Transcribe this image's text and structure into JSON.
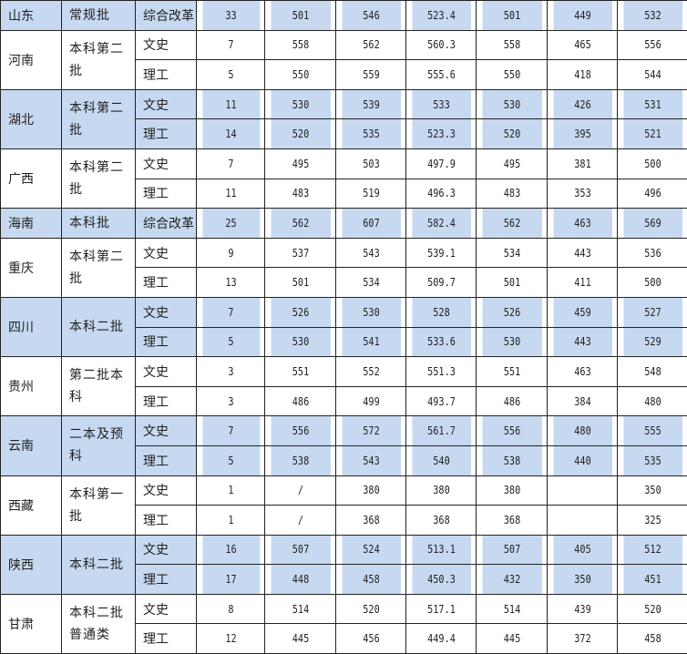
{
  "groups": [
    {
      "province": "山东",
      "batch": "常规批",
      "rows": [
        [
          "综合改革",
          "33",
          "501",
          "546",
          "523.4",
          "501",
          "449",
          "532"
        ]
      ]
    },
    {
      "province": "河南",
      "batch": "本科第二批",
      "rows": [
        [
          "文史",
          "7",
          "558",
          "562",
          "560.3",
          "558",
          "465",
          "556"
        ],
        [
          "理工",
          "5",
          "550",
          "559",
          "555.6",
          "550",
          "418",
          "544"
        ]
      ]
    },
    {
      "province": "湖北",
      "batch": "本科第二批",
      "rows": [
        [
          "文史",
          "11",
          "530",
          "539",
          "533",
          "530",
          "426",
          "531"
        ],
        [
          "理工",
          "14",
          "520",
          "535",
          "523.3",
          "520",
          "395",
          "521"
        ]
      ]
    },
    {
      "province": "广西",
      "batch": "本科第二批",
      "rows": [
        [
          "文史",
          "7",
          "495",
          "503",
          "497.9",
          "495",
          "381",
          "500"
        ],
        [
          "理工",
          "11",
          "483",
          "519",
          "496.3",
          "483",
          "353",
          "496"
        ]
      ]
    },
    {
      "province": "海南",
      "batch": "本科批",
      "rows": [
        [
          "综合改革",
          "25",
          "562",
          "607",
          "582.4",
          "562",
          "463",
          "569"
        ]
      ]
    },
    {
      "province": "重庆",
      "batch": "本科第二批",
      "rows": [
        [
          "文史",
          "9",
          "537",
          "543",
          "539.1",
          "534",
          "443",
          "536"
        ],
        [
          "理工",
          "13",
          "501",
          "534",
          "509.7",
          "501",
          "411",
          "500"
        ]
      ]
    },
    {
      "province": "四川",
      "batch": "本科二批",
      "rows": [
        [
          "文史",
          "7",
          "526",
          "530",
          "528",
          "526",
          "459",
          "527"
        ],
        [
          "理工",
          "5",
          "530",
          "541",
          "533.6",
          "530",
          "443",
          "529"
        ]
      ]
    },
    {
      "province": "贵州",
      "batch": "第二批本科",
      "rows": [
        [
          "文史",
          "3",
          "551",
          "552",
          "551.3",
          "551",
          "463",
          "548"
        ],
        [
          "理工",
          "3",
          "486",
          "499",
          "493.7",
          "486",
          "384",
          "480"
        ]
      ]
    },
    {
      "province": "云南",
      "batch": "二本及预科",
      "rows": [
        [
          "文史",
          "7",
          "556",
          "572",
          "561.7",
          "556",
          "480",
          "555"
        ],
        [
          "理工",
          "5",
          "538",
          "543",
          "540",
          "538",
          "440",
          "535"
        ]
      ]
    },
    {
      "province": "西藏",
      "batch": "本科第一批",
      "rows": [
        [
          "文史",
          "1",
          "/",
          "380",
          "380",
          "380",
          "",
          "350"
        ],
        [
          "理工",
          "1",
          "/",
          "368",
          "368",
          "368",
          "",
          "325"
        ]
      ]
    },
    {
      "province": "陕西",
      "batch": "本科二批",
      "rows": [
        [
          "文史",
          "16",
          "507",
          "524",
          "513.1",
          "507",
          "405",
          "512"
        ],
        [
          "理工",
          "17",
          "448",
          "458",
          "450.3",
          "432",
          "350",
          "451"
        ]
      ]
    },
    {
      "province": "甘肃",
      "batch": "本科二批普通类",
      "rows": [
        [
          "文史",
          "8",
          "514",
          "520",
          "517.1",
          "514",
          "439",
          "520"
        ],
        [
          "理工",
          "12",
          "445",
          "456",
          "449.4",
          "445",
          "372",
          "458"
        ]
      ]
    }
  ],
  "colors": {
    "shaded_row": "#c6d9f0",
    "border": "#222222"
  }
}
